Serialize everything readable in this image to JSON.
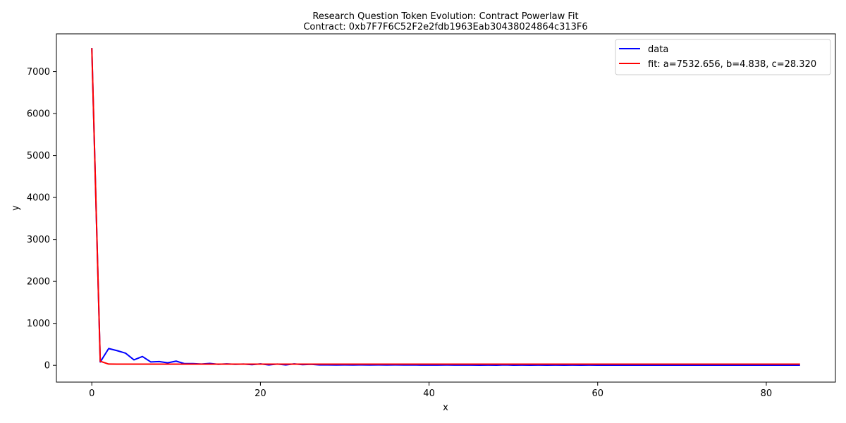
{
  "chart_data": {
    "type": "line",
    "title": "Research Question Token Evolution: Contract Powerlaw Fit",
    "subtitle": "Contract: 0xb7F7F6C52F2e2fdb1963Eab30438024864c313F6",
    "xlabel": "x",
    "ylabel": "y",
    "xlim": [
      -4.2,
      88.2
    ],
    "ylim": [
      -400,
      7900
    ],
    "xticks": [
      0,
      20,
      40,
      60,
      80
    ],
    "yticks": [
      0,
      1000,
      2000,
      3000,
      4000,
      5000,
      6000,
      7000
    ],
    "grid": false,
    "legend_position": "top-right",
    "series": [
      {
        "name": "data",
        "color": "#0000ff",
        "x": [
          0,
          1,
          2,
          3,
          4,
          5,
          6,
          7,
          8,
          9,
          10,
          11,
          12,
          13,
          14,
          15,
          16,
          17,
          18,
          19,
          20,
          21,
          22,
          23,
          24,
          25,
          26,
          27,
          28,
          29,
          30,
          31,
          32,
          33,
          34,
          35,
          36,
          37,
          38,
          39,
          40,
          41,
          42,
          43,
          44,
          45,
          46,
          47,
          48,
          49,
          50,
          51,
          52,
          53,
          54,
          55,
          56,
          57,
          58,
          59,
          60,
          61,
          62,
          63,
          64,
          65,
          66,
          67,
          68,
          69,
          70,
          71,
          72,
          73,
          74,
          75,
          76,
          77,
          78,
          79,
          80,
          81,
          82,
          83,
          84
        ],
        "y": [
          7561,
          80,
          400,
          350,
          290,
          130,
          210,
          80,
          90,
          60,
          100,
          40,
          40,
          30,
          45,
          25,
          35,
          25,
          30,
          15,
          35,
          10,
          30,
          10,
          35,
          15,
          25,
          10,
          10,
          8,
          10,
          8,
          10,
          8,
          10,
          8,
          10,
          8,
          10,
          5,
          8,
          5,
          8,
          5,
          8,
          5,
          3,
          5,
          3,
          10,
          3,
          5,
          3,
          5,
          3,
          5,
          3,
          5,
          3,
          5,
          3,
          3,
          3,
          3,
          3,
          3,
          3,
          3,
          3,
          3,
          3,
          3,
          3,
          3,
          3,
          3,
          3,
          3,
          3,
          3,
          3,
          3,
          3,
          3,
          3
        ]
      },
      {
        "name": "fit: a=7532.656, b=4.838, c=28.320",
        "color": "#ff0000",
        "x": [
          0,
          1,
          2,
          3,
          4,
          5,
          6,
          7,
          8,
          9,
          10,
          11,
          12,
          13,
          14,
          15,
          16,
          17,
          18,
          19,
          20,
          21,
          22,
          23,
          24,
          25,
          26,
          27,
          28,
          29,
          30,
          31,
          32,
          33,
          34,
          35,
          36,
          37,
          38,
          39,
          40,
          41,
          42,
          43,
          44,
          45,
          46,
          47,
          48,
          49,
          50,
          51,
          52,
          53,
          54,
          55,
          56,
          57,
          58,
          59,
          60,
          61,
          62,
          63,
          64,
          65,
          66,
          67,
          68,
          69,
          70,
          71,
          72,
          73,
          74,
          75,
          76,
          77,
          78,
          79,
          80,
          81,
          82,
          83,
          84
        ],
        "y": [
          7561,
          97,
          30,
          28.6,
          28.4,
          28.35,
          28.33,
          28.32,
          28.32,
          28.32,
          28.32,
          28.32,
          28.32,
          28.32,
          28.32,
          28.32,
          28.32,
          28.32,
          28.32,
          28.32,
          28.32,
          28.32,
          28.32,
          28.32,
          28.32,
          28.32,
          28.32,
          28.32,
          28.32,
          28.32,
          28.32,
          28.32,
          28.32,
          28.32,
          28.32,
          28.32,
          28.32,
          28.32,
          28.32,
          28.32,
          28.32,
          28.32,
          28.32,
          28.32,
          28.32,
          28.32,
          28.32,
          28.32,
          28.32,
          28.32,
          28.32,
          28.32,
          28.32,
          28.32,
          28.32,
          28.32,
          28.32,
          28.32,
          28.32,
          28.32,
          28.32,
          28.32,
          28.32,
          28.32,
          28.32,
          28.32,
          28.32,
          28.32,
          28.32,
          28.32,
          28.32,
          28.32,
          28.32,
          28.32,
          28.32,
          28.32,
          28.32,
          28.32,
          28.32,
          28.32,
          28.32,
          28.32,
          28.32,
          28.32,
          28.32
        ]
      }
    ]
  }
}
